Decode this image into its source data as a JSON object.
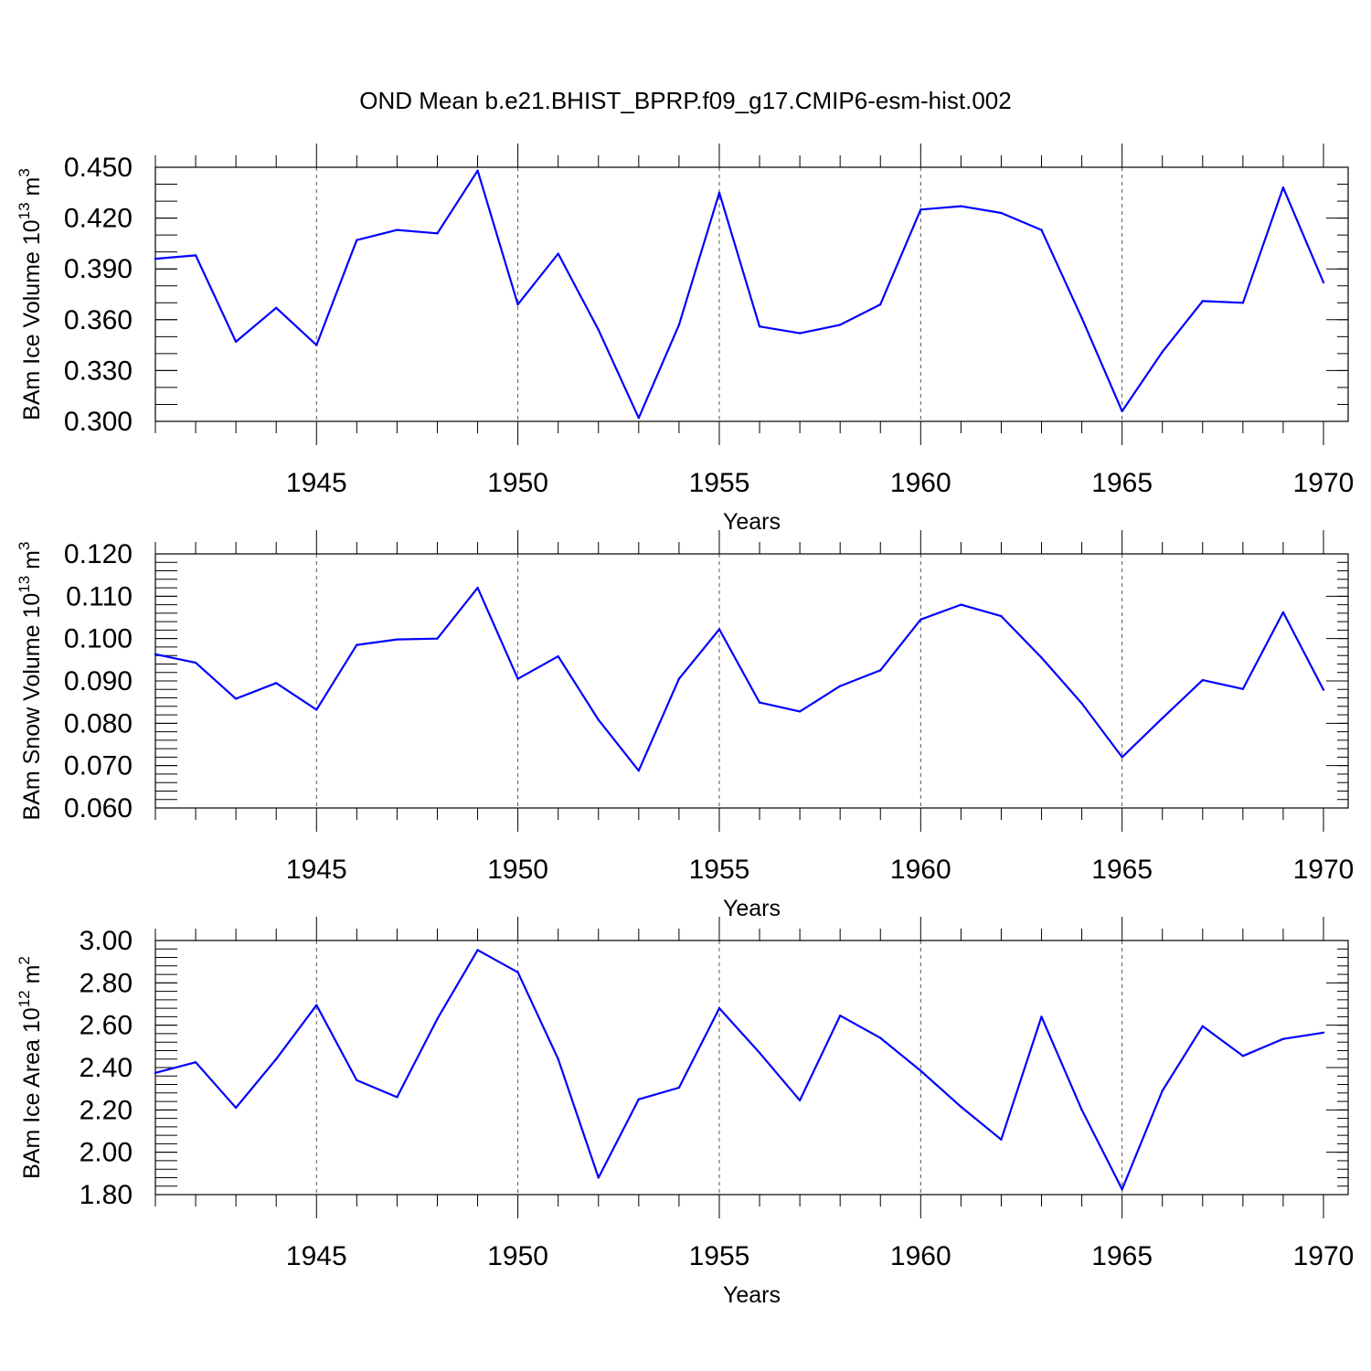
{
  "title": "OND Mean b.e21.BHIST_BPRP.f09_g17.CMIP6-esm-hist.002",
  "line_color": "#0000ff",
  "chart_data": [
    {
      "type": "line",
      "ylabel_main": "BAm Ice Volume 10",
      "ylabel_exp": "13",
      "ylabel_unit": " m",
      "ylabel_unit_exp": "3",
      "xlabel": "Years",
      "xlim": [
        1941,
        1970
      ],
      "ylim": [
        0.3,
        0.45
      ],
      "x_ticks": [
        1945,
        1950,
        1955,
        1960,
        1965,
        1970
      ],
      "x_tick_labels": [
        "1945",
        "1950",
        "1955",
        "1960",
        "1965",
        "1970"
      ],
      "y_ticks": [
        0.3,
        0.33,
        0.36,
        0.39,
        0.42,
        0.45
      ],
      "y_tick_labels": [
        "0.300",
        "0.330",
        "0.360",
        "0.390",
        "0.420",
        "0.450"
      ],
      "y_minor_step": 0.01,
      "grid_x": [
        1945,
        1950,
        1955,
        1960,
        1965
      ],
      "series": [
        {
          "name": "BAm Ice Volume",
          "x": [
            1941,
            1942,
            1943,
            1944,
            1945,
            1946,
            1947,
            1948,
            1949,
            1950,
            1951,
            1952,
            1953,
            1954,
            1955,
            1956,
            1957,
            1958,
            1959,
            1960,
            1961,
            1962,
            1963,
            1964,
            1965,
            1966,
            1967,
            1968,
            1969,
            1970
          ],
          "values": [
            0.396,
            0.398,
            0.347,
            0.367,
            0.345,
            0.407,
            0.413,
            0.411,
            0.448,
            0.369,
            0.399,
            0.354,
            0.302,
            0.357,
            0.435,
            0.356,
            0.352,
            0.357,
            0.369,
            0.425,
            0.427,
            0.423,
            0.413,
            0.361,
            0.306,
            0.341,
            0.371,
            0.37,
            0.438,
            0.382
          ]
        }
      ]
    },
    {
      "type": "line",
      "ylabel_main": "BAm Snow Volume 10",
      "ylabel_exp": "13",
      "ylabel_unit": " m",
      "ylabel_unit_exp": "3",
      "xlabel": "Years",
      "xlim": [
        1941,
        1970
      ],
      "ylim": [
        0.06,
        0.12
      ],
      "x_ticks": [
        1945,
        1950,
        1955,
        1960,
        1965,
        1970
      ],
      "x_tick_labels": [
        "1945",
        "1950",
        "1955",
        "1960",
        "1965",
        "1970"
      ],
      "y_ticks": [
        0.06,
        0.07,
        0.08,
        0.09,
        0.1,
        0.11,
        0.12
      ],
      "y_tick_labels": [
        "0.060",
        "0.070",
        "0.080",
        "0.090",
        "0.100",
        "0.110",
        "0.120"
      ],
      "y_minor_step": 0.002,
      "grid_x": [
        1945,
        1950,
        1955,
        1960,
        1965
      ],
      "series": [
        {
          "name": "BAm Snow Volume",
          "x": [
            1941,
            1942,
            1943,
            1944,
            1945,
            1946,
            1947,
            1948,
            1949,
            1950,
            1951,
            1952,
            1953,
            1954,
            1955,
            1956,
            1957,
            1958,
            1959,
            1960,
            1961,
            1962,
            1963,
            1964,
            1965,
            1966,
            1967,
            1968,
            1969,
            1970
          ],
          "values": [
            0.0963,
            0.0943,
            0.0858,
            0.0895,
            0.0832,
            0.0985,
            0.0998,
            0.1,
            0.112,
            0.0905,
            0.0958,
            0.0808,
            0.0688,
            0.0905,
            0.1022,
            0.0849,
            0.0828,
            0.0888,
            0.0925,
            0.1045,
            0.108,
            0.1053,
            0.0955,
            0.0847,
            0.072,
            0.0812,
            0.0902,
            0.0881,
            0.1062,
            0.0879
          ]
        }
      ]
    },
    {
      "type": "line",
      "ylabel_main": "BAm Ice Area 10",
      "ylabel_exp": "12",
      "ylabel_unit": " m",
      "ylabel_unit_exp": "2",
      "xlabel": "Years",
      "xlim": [
        1941,
        1970
      ],
      "ylim": [
        1.8,
        3.0
      ],
      "x_ticks": [
        1945,
        1950,
        1955,
        1960,
        1965,
        1970
      ],
      "x_tick_labels": [
        "1945",
        "1950",
        "1955",
        "1960",
        "1965",
        "1970"
      ],
      "y_ticks": [
        1.8,
        2.0,
        2.2,
        2.4,
        2.6,
        2.8,
        3.0
      ],
      "y_tick_labels": [
        "1.80",
        "2.00",
        "2.20",
        "2.40",
        "2.60",
        "2.80",
        "3.00"
      ],
      "y_minor_step": 0.04,
      "grid_x": [
        1945,
        1950,
        1955,
        1960,
        1965
      ],
      "series": [
        {
          "name": "BAm Ice Area",
          "x": [
            1941,
            1942,
            1943,
            1944,
            1945,
            1946,
            1947,
            1948,
            1949,
            1950,
            1951,
            1952,
            1953,
            1954,
            1955,
            1956,
            1957,
            1958,
            1959,
            1960,
            1961,
            1962,
            1963,
            1964,
            1965,
            1966,
            1967,
            1968,
            1969,
            1970
          ],
          "values": [
            2.375,
            2.425,
            2.21,
            2.44,
            2.695,
            2.34,
            2.26,
            2.63,
            2.955,
            2.85,
            2.44,
            1.88,
            2.25,
            2.305,
            2.68,
            2.47,
            2.245,
            2.645,
            2.54,
            2.385,
            2.215,
            2.06,
            2.64,
            2.2,
            1.825,
            2.29,
            2.595,
            2.455,
            2.535,
            2.565
          ]
        }
      ]
    }
  ]
}
